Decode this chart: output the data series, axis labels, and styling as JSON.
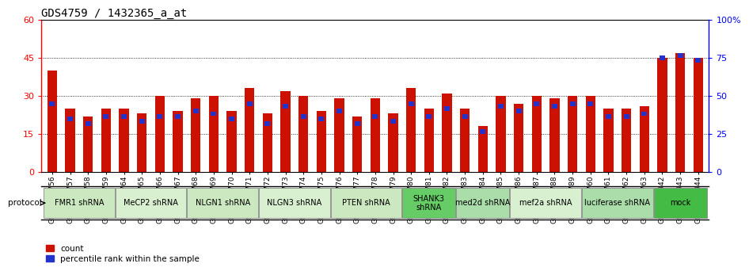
{
  "title": "GDS4759 / 1432365_a_at",
  "samples": [
    "GSM1145756",
    "GSM1145757",
    "GSM1145758",
    "GSM1145759",
    "GSM1145764",
    "GSM1145765",
    "GSM1145766",
    "GSM1145767",
    "GSM1145768",
    "GSM1145769",
    "GSM1145770",
    "GSM1145771",
    "GSM1145772",
    "GSM1145773",
    "GSM1145774",
    "GSM1145775",
    "GSM1145776",
    "GSM1145777",
    "GSM1145778",
    "GSM1145779",
    "GSM1145780",
    "GSM1145781",
    "GSM1145782",
    "GSM1145783",
    "GSM1145784",
    "GSM1145785",
    "GSM1145786",
    "GSM1145787",
    "GSM1145788",
    "GSM1145789",
    "GSM1145760",
    "GSM1145761",
    "GSM1145762",
    "GSM1145763",
    "GSM1145942",
    "GSM1145943",
    "GSM1145944"
  ],
  "red_values": [
    40,
    25,
    22,
    25,
    25,
    23,
    30,
    24,
    29,
    30,
    24,
    33,
    23,
    32,
    30,
    24,
    29,
    22,
    29,
    23,
    33,
    25,
    31,
    25,
    18,
    30,
    27,
    30,
    29,
    30,
    30,
    25,
    25,
    26,
    45,
    47,
    45
  ],
  "blue_positions": [
    27,
    21,
    19,
    22,
    22,
    20,
    22,
    22,
    24,
    23,
    21,
    27,
    19,
    26,
    22,
    21,
    24,
    19,
    22,
    20,
    27,
    22,
    25,
    22,
    16,
    26,
    24,
    27,
    26,
    27,
    27,
    22,
    22,
    23,
    45,
    46,
    44
  ],
  "protocols": [
    {
      "label": "FMR1 shRNA",
      "start": 0,
      "end": 4,
      "color": "#cce8c0"
    },
    {
      "label": "MeCP2 shRNA",
      "start": 4,
      "end": 8,
      "color": "#d8f0d0"
    },
    {
      "label": "NLGN1 shRNA",
      "start": 8,
      "end": 12,
      "color": "#cce8c0"
    },
    {
      "label": "NLGN3 shRNA",
      "start": 12,
      "end": 16,
      "color": "#d8f0d0"
    },
    {
      "label": "PTEN shRNA",
      "start": 16,
      "end": 20,
      "color": "#cce8c0"
    },
    {
      "label": "SHANK3\nshRNA",
      "start": 20,
      "end": 23,
      "color": "#66cc66"
    },
    {
      "label": "med2d shRNA",
      "start": 23,
      "end": 26,
      "color": "#aaddaa"
    },
    {
      "label": "mef2a shRNA",
      "start": 26,
      "end": 30,
      "color": "#d8f0d0"
    },
    {
      "label": "luciferase shRNA",
      "start": 30,
      "end": 34,
      "color": "#aaddaa"
    },
    {
      "label": "mock",
      "start": 34,
      "end": 37,
      "color": "#44bb44"
    }
  ],
  "ylim_left": [
    0,
    60
  ],
  "ylim_right": [
    0,
    100
  ],
  "yticks_left": [
    0,
    15,
    30,
    45,
    60
  ],
  "ytick_labels_left": [
    "0",
    "15",
    "30",
    "45",
    "60"
  ],
  "yticks_right": [
    0,
    25,
    50,
    75,
    100
  ],
  "ytick_labels_right": [
    "0",
    "25",
    "50",
    "75",
    "100%"
  ],
  "bar_color_red": "#cc1100",
  "bar_color_blue": "#2233cc",
  "bar_width": 0.55,
  "bg_color": "#ffffff",
  "title_fontsize": 10,
  "tick_fontsize": 6.5,
  "protocol_fontsize": 7
}
